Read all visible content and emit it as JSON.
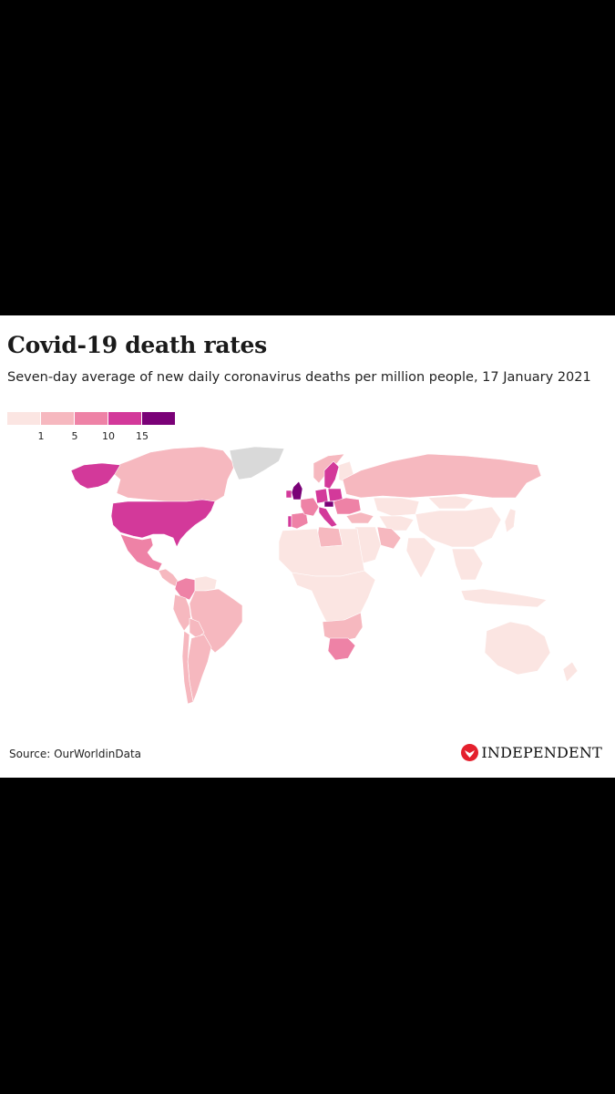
{
  "title": "Covid-19 death rates",
  "subtitle": "Seven-day average of new daily coronavirus deaths per million people, 17 January 2021",
  "legend": {
    "thresholds": [
      "1",
      "5",
      "10",
      "15"
    ],
    "colors": [
      "#fbe5e2",
      "#f6b8bf",
      "#ee82a6",
      "#d3399a",
      "#7a0177"
    ]
  },
  "no_data_color": "#d9d9d9",
  "source": "Source: OurWorldinData",
  "brand": "INDEPENDENT",
  "brand_icon": "eagle-logo-icon",
  "map_regions": [
    {
      "name": "Canada",
      "bucket": 1
    },
    {
      "name": "Greenland",
      "bucket": -1
    },
    {
      "name": "Alaska",
      "bucket": 3
    },
    {
      "name": "United States",
      "bucket": 3
    },
    {
      "name": "Mexico",
      "bucket": 2
    },
    {
      "name": "Central America",
      "bucket": 1
    },
    {
      "name": "Colombia",
      "bucket": 2
    },
    {
      "name": "Venezuela",
      "bucket": 0
    },
    {
      "name": "Brazil",
      "bucket": 1
    },
    {
      "name": "Peru",
      "bucket": 1
    },
    {
      "name": "Bolivia",
      "bucket": 1
    },
    {
      "name": "Argentina",
      "bucket": 1
    },
    {
      "name": "Chile",
      "bucket": 1
    },
    {
      "name": "United Kingdom",
      "bucket": 4
    },
    {
      "name": "Ireland",
      "bucket": 3
    },
    {
      "name": "Portugal",
      "bucket": 3
    },
    {
      "name": "Spain",
      "bucket": 2
    },
    {
      "name": "France",
      "bucket": 2
    },
    {
      "name": "Germany",
      "bucket": 3
    },
    {
      "name": "Sweden",
      "bucket": 3
    },
    {
      "name": "Norway",
      "bucket": 1
    },
    {
      "name": "Finland",
      "bucket": 0
    },
    {
      "name": "Czechia",
      "bucket": 4
    },
    {
      "name": "Poland",
      "bucket": 3
    },
    {
      "name": "Italy",
      "bucket": 3
    },
    {
      "name": "Eastern Europe",
      "bucket": 2
    },
    {
      "name": "Russia",
      "bucket": 1
    },
    {
      "name": "Kazakhstan",
      "bucket": 0
    },
    {
      "name": "Central Asia",
      "bucket": 0
    },
    {
      "name": "Turkey",
      "bucket": 1
    },
    {
      "name": "Iran",
      "bucket": 1
    },
    {
      "name": "Middle East",
      "bucket": 0
    },
    {
      "name": "Libya",
      "bucket": 1
    },
    {
      "name": "North Africa",
      "bucket": 0
    },
    {
      "name": "Sub-Saharan Africa",
      "bucket": 0
    },
    {
      "name": "Southern Africa",
      "bucket": 1
    },
    {
      "name": "South Africa",
      "bucket": 2
    },
    {
      "name": "India",
      "bucket": 0
    },
    {
      "name": "China",
      "bucket": 0
    },
    {
      "name": "Mongolia",
      "bucket": 0
    },
    {
      "name": "Southeast Asia",
      "bucket": 0
    },
    {
      "name": "Japan",
      "bucket": 0
    },
    {
      "name": "Indonesia",
      "bucket": 0
    },
    {
      "name": "Australia",
      "bucket": 0
    },
    {
      "name": "New Zealand",
      "bucket": 0
    }
  ]
}
